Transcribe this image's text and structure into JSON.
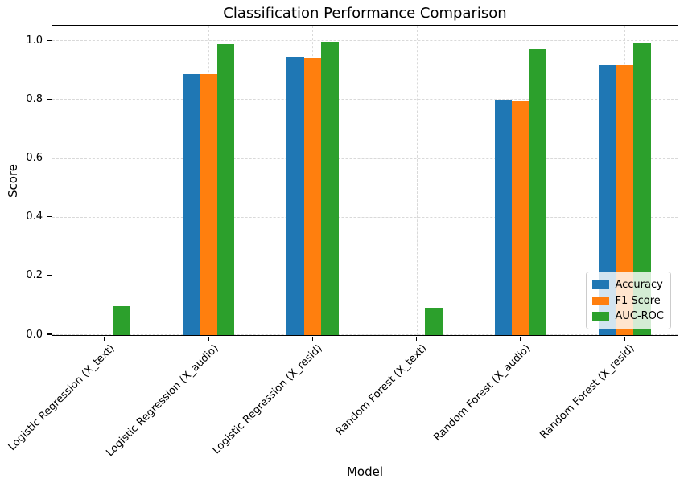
{
  "chart_data": {
    "type": "bar",
    "title": "Classification Performance Comparison",
    "xlabel": "Model",
    "ylabel": "Score",
    "categories": [
      "Logistic Regression (X_text)",
      "Logistic Regression (X_audio)",
      "Logistic Regression (X_resid)",
      "Random Forest (X_text)",
      "Random Forest (X_audio)",
      "Random Forest (X_resid)"
    ],
    "series": [
      {
        "name": "Accuracy",
        "color": "#1f77b4",
        "values": [
          0.0,
          0.89,
          0.945,
          0.0,
          0.8,
          0.92
        ]
      },
      {
        "name": "F1 Score",
        "color": "#ff7f0e",
        "values": [
          0.0,
          0.888,
          0.944,
          0.0,
          0.797,
          0.919
        ]
      },
      {
        "name": "AUC-ROC",
        "color": "#2ca02c",
        "values": [
          0.098,
          0.99,
          0.998,
          0.094,
          0.974,
          0.995
        ]
      }
    ],
    "yticks": [
      0.0,
      0.2,
      0.4,
      0.6,
      0.8,
      1.0
    ],
    "ytick_labels": [
      "0.0",
      "0.2",
      "0.4",
      "0.6",
      "0.8",
      "1.0"
    ],
    "ylim": [
      0,
      1.05
    ],
    "grid": true,
    "grid_style": "dashed",
    "legend_position": "lower right"
  }
}
